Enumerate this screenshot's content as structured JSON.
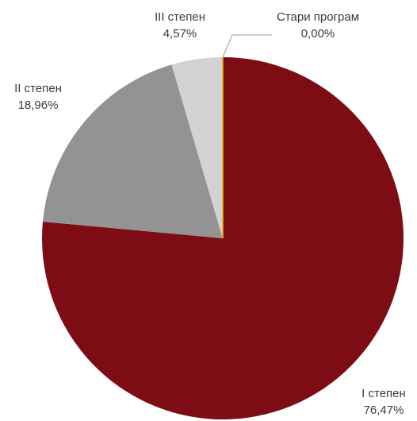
{
  "chart_data": {
    "type": "pie",
    "title": "",
    "categories": [
      "I степен",
      "II степен",
      "III степен",
      "Стари програм"
    ],
    "values": [
      76.47,
      18.96,
      4.57,
      0.0
    ],
    "value_labels": [
      "76,47%",
      "18,96%",
      "4,57%",
      "0,00%"
    ],
    "colors": [
      "#7d0c15",
      "#939393",
      "#d3d3d3",
      "#e6b800"
    ],
    "start_angle_deg": 0,
    "direction": "clockwise",
    "legend": "none",
    "data_labels": "outside"
  }
}
